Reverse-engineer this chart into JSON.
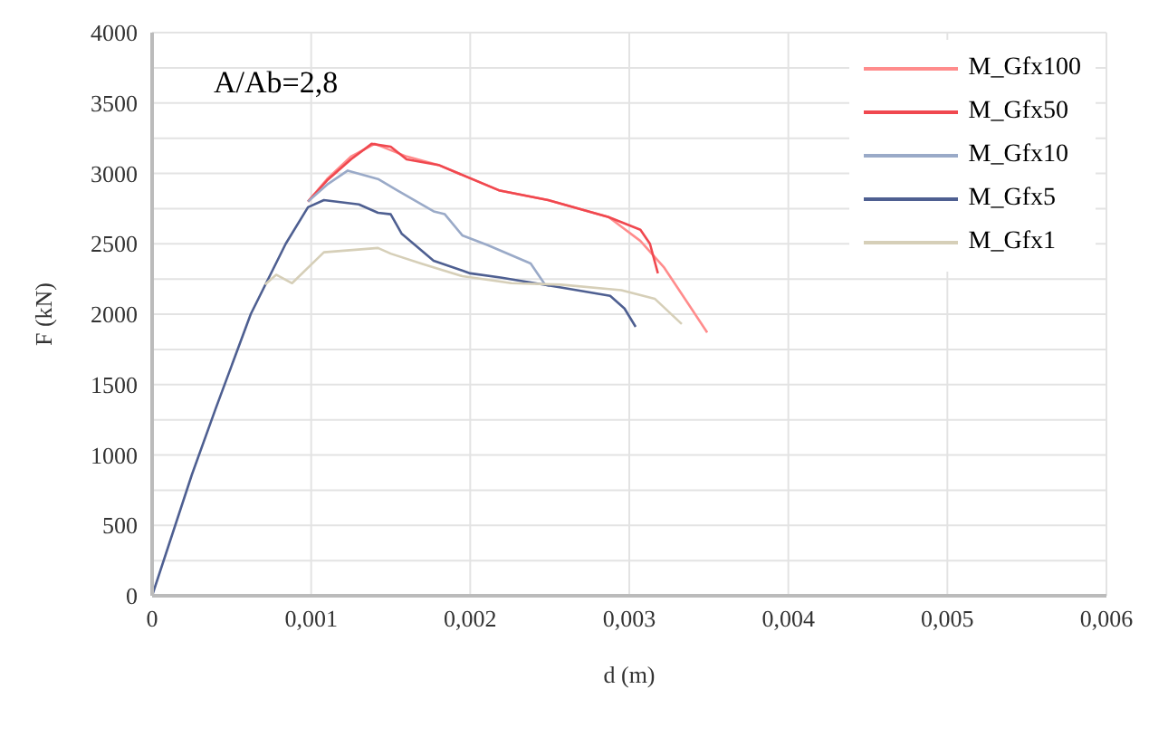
{
  "chart_data": {
    "type": "line",
    "xlabel": "d (m)",
    "ylabel": "F (kN)",
    "annotations": [
      "A/Ab=2,8"
    ],
    "xlim": [
      0,
      0.006
    ],
    "xticks": [
      {
        "value": 0,
        "label": "0"
      },
      {
        "value": 0.001,
        "label": "0,001"
      },
      {
        "value": 0.002,
        "label": "0,002"
      },
      {
        "value": 0.003,
        "label": "0,003"
      },
      {
        "value": 0.004,
        "label": "0,004"
      },
      {
        "value": 0.005,
        "label": "0,005"
      },
      {
        "value": 0.006,
        "label": "0,006"
      }
    ],
    "ylim": [
      0,
      4000
    ],
    "yticks": [
      0,
      {
        "value": 250,
        "label": null
      },
      500,
      {
        "value": 750,
        "label": null
      },
      1000,
      {
        "value": 1250,
        "label": null
      },
      1500,
      {
        "value": 1750,
        "label": null
      },
      2000,
      {
        "value": 2250,
        "label": null
      },
      2500,
      {
        "value": 2750,
        "label": null
      },
      3000,
      {
        "value": 3250,
        "label": null
      },
      3500,
      {
        "value": 3750,
        "label": null
      },
      4000
    ],
    "grid": true,
    "legend": "top right",
    "series": [
      {
        "name": "M_Gfx100",
        "color": "#ff8c8c",
        "x": [
          0.00098,
          0.0011,
          0.00125,
          0.0014,
          0.0016,
          0.0018,
          0.00218,
          0.00249,
          0.00287,
          0.00307,
          0.00322,
          0.00349
        ],
        "values": [
          2800,
          2960,
          3120,
          3210,
          3120,
          3060,
          2880,
          2810,
          2690,
          2520,
          2330,
          1870
        ]
      },
      {
        "name": "M_Gfx50",
        "color": "#f0484f",
        "x": [
          0.00098,
          0.0011,
          0.00125,
          0.00138,
          0.0015,
          0.0016,
          0.0018,
          0.00218,
          0.00249,
          0.00287,
          0.00307,
          0.00313,
          0.00318
        ],
        "values": [
          2800,
          2950,
          3100,
          3210,
          3190,
          3100,
          3060,
          2880,
          2810,
          2690,
          2600,
          2500,
          2290
        ]
      },
      {
        "name": "M_Gfx10",
        "color": "#9aaac8",
        "x": [
          0.00098,
          0.0011,
          0.00123,
          0.00142,
          0.00154,
          0.00177,
          0.00184,
          0.00195,
          0.00211,
          0.00238,
          0.00247,
          0.0025
        ],
        "values": [
          2800,
          2920,
          3020,
          2960,
          2880,
          2730,
          2710,
          2560,
          2490,
          2360,
          2210,
          2200
        ]
      },
      {
        "name": "M_Gfx5",
        "color": "#4e5f91",
        "x": [
          0,
          0.00025,
          0.0004,
          0.00062,
          0.00084,
          0.00098,
          0.00108,
          0.0013,
          0.00142,
          0.0015,
          0.00157,
          0.00177,
          0.002,
          0.00219,
          0.00257,
          0.00288,
          0.00297,
          0.00304
        ],
        "values": [
          0,
          860,
          1330,
          2000,
          2500,
          2760,
          2810,
          2780,
          2720,
          2710,
          2570,
          2380,
          2290,
          2260,
          2190,
          2130,
          2040,
          1910
        ]
      },
      {
        "name": "M_Gfx1",
        "color": "#d6cfb8",
        "x": [
          0.00071,
          0.00078,
          0.00088,
          0.00108,
          0.00142,
          0.0015,
          0.00169,
          0.00195,
          0.00226,
          0.00257,
          0.00295,
          0.00316,
          0.00333
        ],
        "values": [
          2210,
          2280,
          2220,
          2440,
          2470,
          2430,
          2360,
          2270,
          2220,
          2210,
          2170,
          2110,
          1930
        ]
      }
    ]
  }
}
